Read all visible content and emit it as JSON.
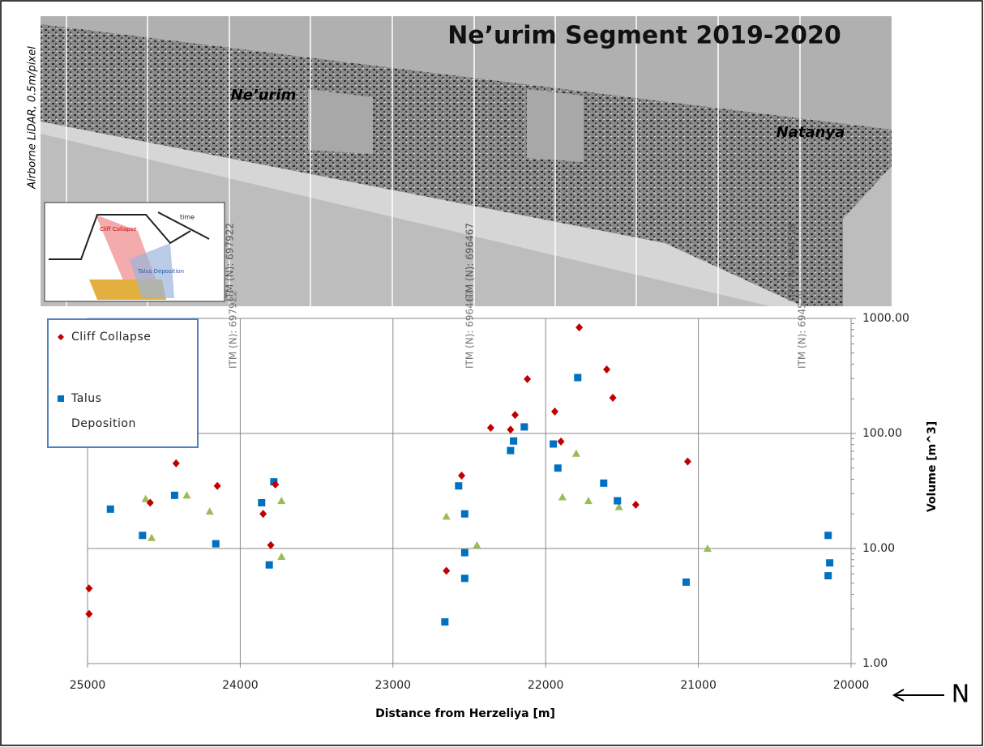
{
  "chart_data": {
    "type": "scatter",
    "title": "Ne’urim Segment 2019-2020",
    "annotations": [
      "Ne’urim",
      "Natanya",
      "Airborne LiDAR, 0.5m/pixel",
      "ITM (N): 697922",
      "ITM (N): 696467",
      "ITM (N): 694528",
      "Cliff Collapse",
      "Talus Deposition",
      "time",
      "N"
    ],
    "x_label": "Distance from Herzeliya [m]",
    "y_label": "Volume [m^3]",
    "xlim": [
      25000,
      20000
    ],
    "xticks": [
      25000,
      24000,
      23000,
      22000,
      21000,
      20000
    ],
    "ylim": [
      1,
      1000
    ],
    "y_scale": "log",
    "yticks": [
      {
        "value": 1,
        "label": "1.00"
      },
      {
        "value": 10,
        "label": "10.00"
      },
      {
        "value": 100,
        "label": "100.00"
      },
      {
        "value": 1000,
        "label": "1000.00"
      }
    ],
    "grid": true,
    "legend": "upper left",
    "series": [
      {
        "name": "Cliff Collapse",
        "color": "#c00000",
        "marker": "diamond",
        "x": [
          24990,
          24990,
          24420,
          24590,
          24150,
          23850,
          23800,
          23770,
          22650,
          22550,
          22360,
          22230,
          22200,
          22120,
          21940,
          21900,
          21780,
          21600,
          21560,
          21410,
          21070
        ],
        "values": [
          4.5,
          2.7,
          55,
          25,
          35,
          20,
          10.7,
          36,
          6.4,
          43,
          112,
          108,
          145,
          297,
          155,
          85,
          835,
          360,
          204,
          24,
          57
        ]
      },
      {
        "name": "Talus Deposition",
        "color": "#0070c0",
        "marker": "square",
        "x": [
          24850,
          24640,
          24430,
          24160,
          23860,
          23780,
          23810,
          22660,
          22570,
          22530,
          22530,
          22530,
          22230,
          22210,
          22140,
          21950,
          21920,
          21790,
          21620,
          21530,
          21080,
          20150,
          20140,
          20150
        ],
        "values": [
          22,
          13,
          29,
          11,
          25,
          38,
          7.2,
          2.3,
          35,
          20,
          9.2,
          5.5,
          71,
          86,
          114,
          81,
          50,
          306,
          37,
          26,
          5.1,
          13,
          7.5,
          5.8
        ]
      },
      {
        "color": "#9bbb59",
        "marker": "triangle",
        "x": [
          24620,
          24580,
          24200,
          24350,
          23730,
          23730,
          22650,
          22450,
          21890,
          21800,
          21720,
          21520,
          20940
        ],
        "values": [
          27,
          12.4,
          21,
          29,
          26,
          8.5,
          19,
          10.7,
          28,
          67,
          26,
          23,
          10
        ]
      }
    ]
  }
}
